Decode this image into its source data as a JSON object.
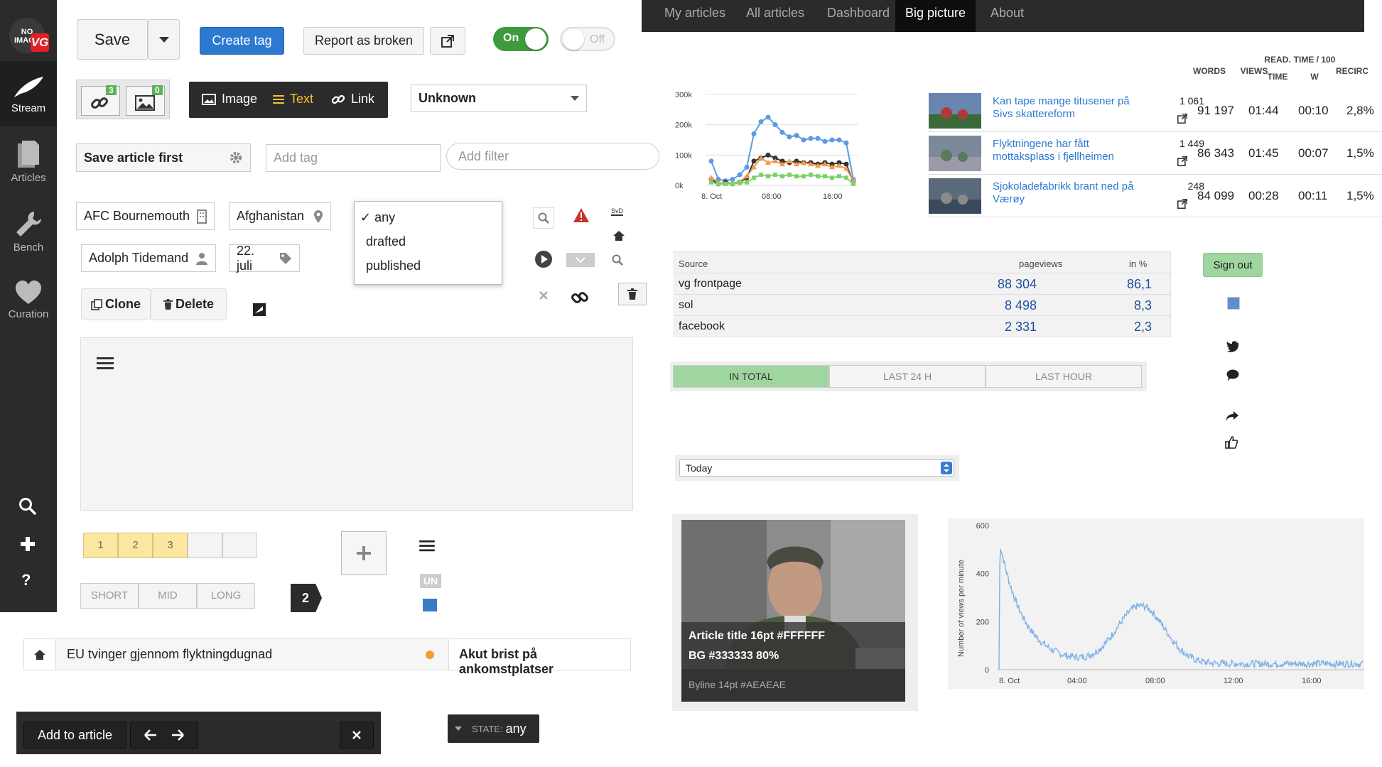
{
  "sidebar": {
    "logo_line1": "NO",
    "logo_line2": "IMAGE",
    "logo_badge": "VG",
    "items": [
      {
        "label": "Stream",
        "icon": "feather-icon"
      },
      {
        "label": "Articles",
        "icon": "document-icon"
      },
      {
        "label": "Bench",
        "icon": "wrench-icon"
      },
      {
        "label": "Curation",
        "icon": "heart-icon"
      }
    ],
    "bottom_icons": [
      "search-icon",
      "plus-icon",
      "question-icon"
    ],
    "help_glyph": "?"
  },
  "toolbar": {
    "save_label": "Save",
    "create_tag_label": "Create tag",
    "report_label": "Report as broken",
    "toggle_on_label": "On",
    "toggle_off_label": "Off"
  },
  "counters": {
    "links": "3",
    "images": "0"
  },
  "media": {
    "image_label": "Image",
    "text_label": "Text",
    "link_label": "Link"
  },
  "select_unknown": "Unknown",
  "save_first_label": "Save article first",
  "add_tag_placeholder": "Add tag",
  "add_filter_placeholder": "Add filter",
  "tags": {
    "team": "AFC Bournemouth",
    "country": "Afghanistan",
    "person": "Adolph Tidemand",
    "date": "22. juli"
  },
  "state_menu": {
    "items": [
      "any",
      "drafted",
      "published"
    ],
    "checked": "any"
  },
  "clone_label": "Clone",
  "delete_label": "Delete",
  "numbers": [
    "1",
    "2",
    "3",
    "",
    ""
  ],
  "lengths": [
    "SHORT",
    "MID",
    "LONG"
  ],
  "step_badge": "2",
  "un_badge": "UN",
  "breadcrumb": {
    "title": "EU tvinger gjennom flyktningdugnad",
    "next": "Akut brist på ankomstplatser"
  },
  "addbar": {
    "add_label": "Add to article"
  },
  "state_pill": {
    "label": "STATE:",
    "value": "any"
  },
  "topnav": [
    "My articles",
    "All articles",
    "Dashboard",
    "Big picture",
    "About"
  ],
  "topnav_active": "Big picture",
  "line_chart": {
    "y_ticks": [
      "300k",
      "200k",
      "100k",
      "0k"
    ],
    "x_ticks": [
      "8. Oct",
      "08:00",
      "16:00"
    ]
  },
  "table": {
    "headers": {
      "words": "WORDS",
      "views": "VIEWS",
      "read1": "READ.",
      "read2": "TIME",
      "time1": "TIME / 100",
      "time2": "W",
      "recirc": "RECIRC"
    },
    "rows": [
      {
        "title": "Kan tape mange titusener på Sivs skattereform",
        "words": "1 061",
        "views": "91 197",
        "read_time": "01:44",
        "time_100w": "00:10",
        "recirc": "2,8%"
      },
      {
        "title": "Flyktningene har fått mottaksplass i fjellheimen",
        "words": "1 449",
        "views": "86 343",
        "read_time": "01:45",
        "time_100w": "00:07",
        "recirc": "1,5%"
      },
      {
        "title": "Sjokoladefabrikk brant ned på Værøy",
        "words": "248",
        "views": "84 099",
        "read_time": "00:28",
        "time_100w": "00:11",
        "recirc": "1,5%"
      }
    ]
  },
  "sources": {
    "header": {
      "source": "Source",
      "pageviews": "pageviews",
      "pct": "in %"
    },
    "rows": [
      {
        "name": "vg frontpage",
        "pageviews": "88 304",
        "pct": "86,1"
      },
      {
        "name": "sol",
        "pageviews": "8 498",
        "pct": "8,3"
      },
      {
        "name": "facebook",
        "pageviews": "2 331",
        "pct": "2,3"
      }
    ]
  },
  "sign_out_label": "Sign out",
  "period_tabs": [
    "IN TOTAL",
    "LAST 24 H",
    "LAST HOUR"
  ],
  "period_select": "Today",
  "card": {
    "title_line1": "Article title 16pt #FFFFFF",
    "title_line2": "BG  #333333 80%",
    "byline": "Byline 14pt #AEAEAE"
  },
  "area_chart": {
    "ylabel": "Number of views per minute",
    "y_ticks": [
      "600",
      "400",
      "200",
      "0"
    ],
    "x_ticks": [
      "8. Oct",
      "04:00",
      "08:00",
      "12:00",
      "16:00"
    ]
  },
  "colors": {
    "blue": "#2b7ad0",
    "green": "#3d9b3d",
    "dark": "#2b2b2b",
    "link": "#2b7ad0",
    "value_blue": "#1e4fa0"
  },
  "chart_data": [
    {
      "type": "line",
      "x": [
        "00:00",
        "01:00",
        "02:00",
        "03:00",
        "04:00",
        "05:00",
        "06:00",
        "07:00",
        "08:00",
        "09:00",
        "10:00",
        "11:00",
        "12:00",
        "13:00",
        "14:00",
        "15:00",
        "16:00",
        "17:00",
        "18:00",
        "19:00",
        "20:00"
      ],
      "series": [
        {
          "values": [
            80,
            20,
            15,
            20,
            35,
            60,
            170,
            210,
            225,
            200,
            175,
            160,
            165,
            150,
            155,
            155,
            145,
            150,
            150,
            140,
            20
          ]
        },
        {
          "values": [
            20,
            5,
            10,
            5,
            10,
            25,
            80,
            90,
            100,
            90,
            80,
            75,
            80,
            75,
            75,
            70,
            75,
            70,
            75,
            70,
            10
          ]
        },
        {
          "values": [
            25,
            10,
            5,
            8,
            12,
            30,
            60,
            90,
            75,
            80,
            70,
            80,
            70,
            75,
            70,
            65,
            70,
            60,
            65,
            55,
            15
          ]
        },
        {
          "values": [
            10,
            5,
            5,
            5,
            8,
            10,
            25,
            35,
            30,
            35,
            30,
            35,
            30,
            30,
            35,
            30,
            30,
            25,
            30,
            25,
            5
          ]
        }
      ],
      "colors": [
        "#5b9be6",
        "#333333",
        "#f29b4b",
        "#7ed36b"
      ],
      "ylim": [
        0,
        300000
      ]
    },
    {
      "type": "area",
      "x_range": [
        "00:00",
        "19:30"
      ],
      "ylim": [
        0,
        600
      ],
      "ylabel": "Number of views per minute",
      "color": "#7fb0e8"
    }
  ]
}
